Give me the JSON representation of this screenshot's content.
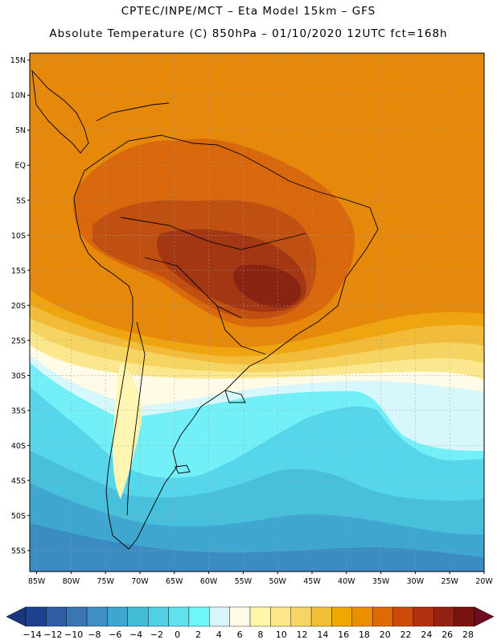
{
  "header": {
    "line1": "CPTEC/INPE/MCT –  Eta Model 15km – GFS",
    "line2": "Absolute Temperature (C) 850hPa – 01/10/2020 12UTC fct=168h"
  },
  "map": {
    "lon_range": [
      -86,
      -20
    ],
    "lat_range": [
      -58,
      16
    ],
    "lat_labels": [
      {
        "lat": 15,
        "text": "15N"
      },
      {
        "lat": 10,
        "text": "10N"
      },
      {
        "lat": 5,
        "text": "5N"
      },
      {
        "lat": 0,
        "text": "EQ"
      },
      {
        "lat": -5,
        "text": "5S"
      },
      {
        "lat": -10,
        "text": "10S"
      },
      {
        "lat": -15,
        "text": "15S"
      },
      {
        "lat": -20,
        "text": "20S"
      },
      {
        "lat": -25,
        "text": "25S"
      },
      {
        "lat": -30,
        "text": "30S"
      },
      {
        "lat": -35,
        "text": "35S"
      },
      {
        "lat": -40,
        "text": "40S"
      },
      {
        "lat": -45,
        "text": "45S"
      },
      {
        "lat": -50,
        "text": "50S"
      },
      {
        "lat": -55,
        "text": "55S"
      }
    ],
    "lon_labels": [
      {
        "lon": -85,
        "text": "85W"
      },
      {
        "lon": -80,
        "text": "80W"
      },
      {
        "lon": -75,
        "text": "75W"
      },
      {
        "lon": -70,
        "text": "70W"
      },
      {
        "lon": -65,
        "text": "65W"
      },
      {
        "lon": -60,
        "text": "60W"
      },
      {
        "lon": -55,
        "text": "55W"
      },
      {
        "lon": -50,
        "text": "50W"
      },
      {
        "lon": -45,
        "text": "45W"
      },
      {
        "lon": -40,
        "text": "40W"
      },
      {
        "lon": -35,
        "text": "35W"
      },
      {
        "lon": -30,
        "text": "30W"
      },
      {
        "lon": -25,
        "text": "25W"
      },
      {
        "lon": -20,
        "text": "20W"
      }
    ]
  },
  "colorbar": {
    "labels": [
      "-14",
      "-12",
      "-10",
      "-8",
      "-6",
      "-4",
      "-2",
      "0",
      "2",
      "4",
      "6",
      "8",
      "10",
      "12",
      "14",
      "16",
      "18",
      "20",
      "22",
      "24",
      "26",
      "28"
    ],
    "colors": [
      "#1f3f8f",
      "#2f5ca3",
      "#3a76b4",
      "#3f8ec4",
      "#3fa6cf",
      "#43bcd8",
      "#4fd0e4",
      "#5fe2ee",
      "#6ff6f6",
      "#d8f6fa",
      "#fffbe6",
      "#fff6a8",
      "#fbe68a",
      "#f6d564",
      "#f2bf38",
      "#eea800",
      "#e98f00",
      "#de6a05",
      "#cc4b0a",
      "#b23210",
      "#952014",
      "#7a1410"
    ],
    "low_end_color": "#1a3580",
    "high_end_color": "#6e0e1e"
  },
  "legend": {
    "temperature_colors": {
      "t28": "#8a2412",
      "t26": "#a33714",
      "t24": "#c04f12",
      "t22": "#d9680c",
      "t20": "#e6880a",
      "t18": "#efa510",
      "t16": "#f2bc3a",
      "t14": "#f6d462",
      "t12": "#fbe88e",
      "t10": "#fff6b4",
      "t8": "#fffbe6",
      "t6": "#d6f7fb",
      "t4": "#73f0f7",
      "t2": "#56d6ea",
      "t0": "#48c0dc",
      "tm2": "#3fa7cf",
      "tm4": "#3a8cc2"
    },
    "coastline_color": "#000000",
    "grid_color": "#a0a0a0"
  }
}
